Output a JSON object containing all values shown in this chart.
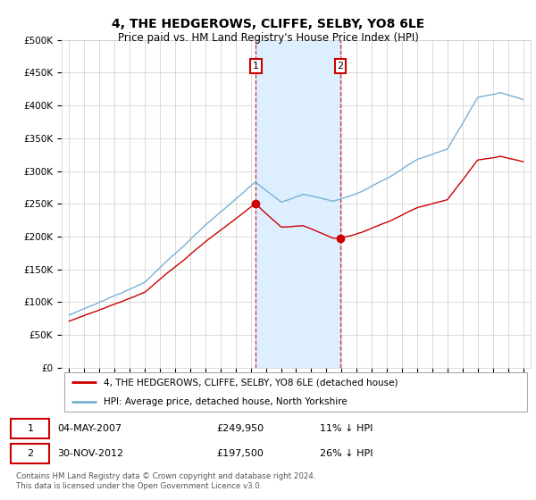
{
  "title": "4, THE HEDGEROWS, CLIFFE, SELBY, YO8 6LE",
  "subtitle": "Price paid vs. HM Land Registry's House Price Index (HPI)",
  "ylim": [
    0,
    500000
  ],
  "yticks": [
    0,
    50000,
    100000,
    150000,
    200000,
    250000,
    300000,
    350000,
    400000,
    450000,
    500000
  ],
  "ytick_labels": [
    "£0",
    "£50K",
    "£100K",
    "£150K",
    "£200K",
    "£250K",
    "£300K",
    "£350K",
    "£400K",
    "£450K",
    "£500K"
  ],
  "sale1_date": "04-MAY-2007",
  "sale1_price": 249950,
  "sale1_year": 2007.33,
  "sale2_date": "30-NOV-2012",
  "sale2_price": 197500,
  "sale2_year": 2012.92,
  "legend_line1": "4, THE HEDGEROWS, CLIFFE, SELBY, YO8 6LE (detached house)",
  "legend_line2": "HPI: Average price, detached house, North Yorkshire",
  "footer": "Contains HM Land Registry data © Crown copyright and database right 2024.\nThis data is licensed under the Open Government Licence v3.0.",
  "red_color": "#cc0000",
  "blue_color": "#7ab0d4",
  "shade_color": "#ddeeff",
  "grid_color": "#cccccc",
  "background_color": "#ffffff"
}
